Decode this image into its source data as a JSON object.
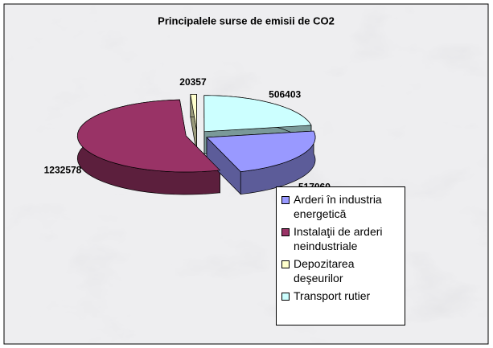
{
  "chart_data": {
    "type": "pie",
    "title": "Principalele surse de emisii de CO2",
    "categories": [
      "Arderi în industria energetică",
      "Instalaţii de arderi neindustriale",
      "Depozitarea deşeurilor",
      "Transport rutier"
    ],
    "values": [
      517060,
      1232578,
      20357,
      506403
    ],
    "colors": [
      "#9999ff",
      "#993366",
      "#ffffcc",
      "#ccffff"
    ],
    "legend": "bottom-right"
  }
}
